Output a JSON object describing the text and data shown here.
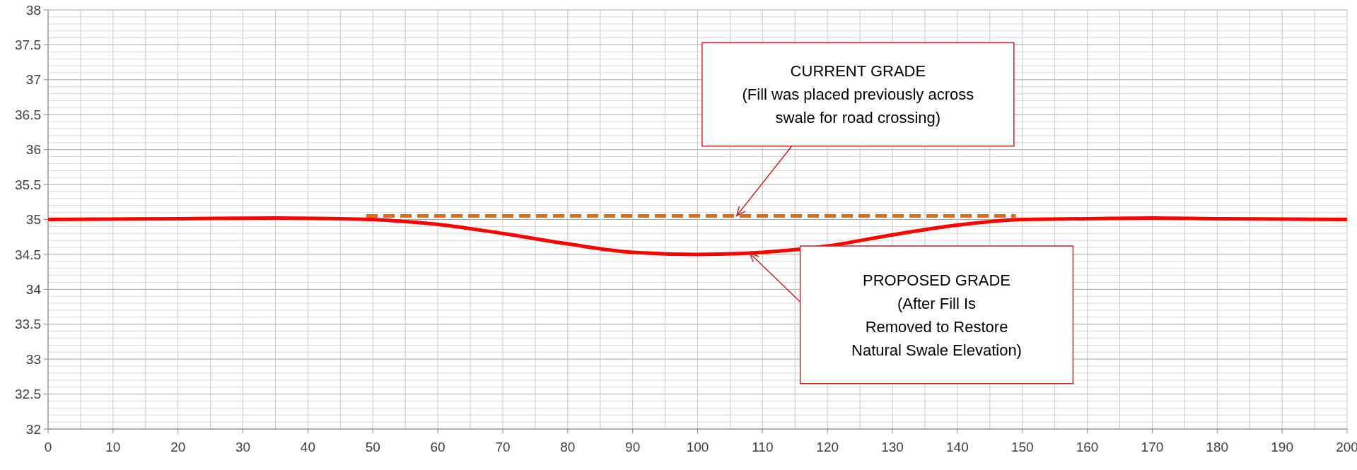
{
  "chart_data": {
    "type": "line",
    "xlim": [
      0,
      200
    ],
    "xticks": [
      0,
      10,
      20,
      30,
      40,
      50,
      60,
      70,
      80,
      90,
      100,
      110,
      120,
      130,
      140,
      150,
      160,
      170,
      180,
      190,
      200
    ],
    "ylim": [
      32,
      38
    ],
    "yticks": [
      32,
      32.5,
      33,
      33.5,
      34,
      34.5,
      35,
      35.5,
      36,
      36.5,
      37,
      37.5,
      38
    ],
    "grid": true,
    "series": [
      {
        "color": "#e36c0a",
        "line_style": "dashed",
        "x": [
          49,
          149
        ],
        "values": [
          35.05,
          35.05
        ]
      },
      {
        "color": "#ff0000",
        "line_style": "solid",
        "x": [
          0,
          20,
          35,
          45,
          50,
          55,
          60,
          70,
          80,
          90,
          100,
          110,
          120,
          130,
          140,
          150,
          160,
          170,
          180,
          200
        ],
        "values": [
          35,
          35.01,
          35.02,
          35.01,
          35,
          34.97,
          34.93,
          34.8,
          34.65,
          34.53,
          34.5,
          34.53,
          34.62,
          34.78,
          34.92,
          35,
          35.01,
          35.02,
          35.01,
          35
        ]
      }
    ],
    "annotations": [
      {
        "text": "CURRENT GRADE\n(Fill was placed previously across\nswale for road crossing)",
        "x": 106,
        "y": 35.05
      },
      {
        "text": "PROPOSED GRADE\n(After Fill Is\nRemoved to Restore\nNatural Swale Elevation)",
        "x": 108,
        "y": 34.52
      }
    ]
  }
}
